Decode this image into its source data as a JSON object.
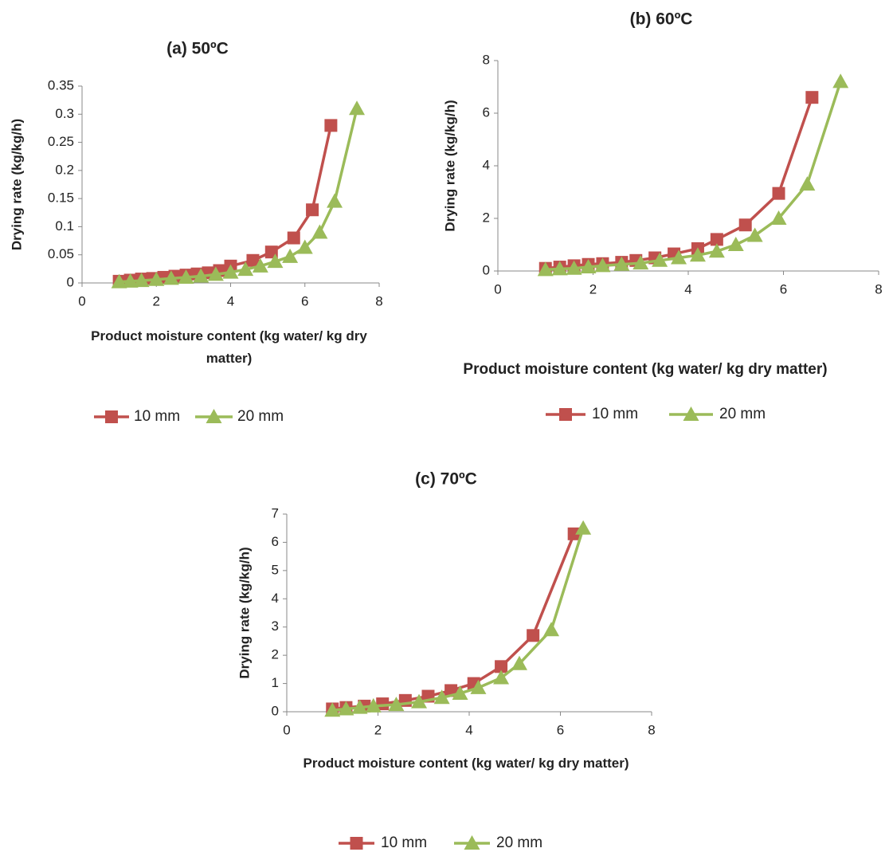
{
  "chart_data": [
    {
      "type": "line",
      "title": "(a) 50ºC",
      "xlabel": "Product moisture content (kg water/ kg dry matter)",
      "ylabel": "Drying rate (kg/kg/h)",
      "xlim": [
        0,
        8
      ],
      "xticks": [
        0,
        2,
        4,
        6,
        8
      ],
      "ylim": [
        0,
        0.35
      ],
      "yticks": [
        0,
        0.05,
        0.1,
        0.15,
        0.2,
        0.25,
        0.3,
        0.35
      ],
      "grid": false,
      "series": [
        {
          "name": "10 mm",
          "color": "#c0504d",
          "marker": "square",
          "x": [
            1.0,
            1.3,
            1.6,
            1.9,
            2.2,
            2.5,
            2.8,
            3.1,
            3.4,
            3.7,
            4.0,
            4.6,
            5.1,
            5.7,
            6.2,
            6.7
          ],
          "values": [
            0.003,
            0.005,
            0.007,
            0.008,
            0.01,
            0.012,
            0.014,
            0.016,
            0.018,
            0.022,
            0.03,
            0.04,
            0.055,
            0.08,
            0.13,
            0.28
          ]
        },
        {
          "name": "20 mm",
          "color": "#9bbb59",
          "marker": "triangle",
          "x": [
            1.0,
            1.3,
            1.6,
            2.0,
            2.4,
            2.8,
            3.2,
            3.6,
            4.0,
            4.4,
            4.8,
            5.2,
            5.6,
            6.0,
            6.4,
            6.8,
            7.4
          ],
          "values": [
            0.002,
            0.003,
            0.004,
            0.006,
            0.008,
            0.01,
            0.012,
            0.015,
            0.019,
            0.024,
            0.03,
            0.038,
            0.047,
            0.063,
            0.09,
            0.145,
            0.31
          ]
        }
      ]
    },
    {
      "type": "line",
      "title": "(b) 60ºC",
      "xlabel": "Product moisture content (kg water/ kg dry matter)",
      "ylabel": "Drying rate (kg/kg/h)",
      "xlim": [
        0,
        8
      ],
      "xticks": [
        0,
        2,
        4,
        6,
        8
      ],
      "ylim": [
        0,
        8
      ],
      "yticks": [
        0,
        2,
        4,
        6,
        8
      ],
      "grid": false,
      "series": [
        {
          "name": "10 mm",
          "color": "#c0504d",
          "marker": "square",
          "x": [
            1.0,
            1.3,
            1.6,
            1.9,
            2.2,
            2.6,
            2.9,
            3.3,
            3.7,
            4.2,
            4.6,
            5.2,
            5.9,
            6.6
          ],
          "values": [
            0.1,
            0.15,
            0.2,
            0.25,
            0.28,
            0.33,
            0.4,
            0.5,
            0.65,
            0.85,
            1.2,
            1.75,
            2.95,
            6.6
          ]
        },
        {
          "name": "20 mm",
          "color": "#9bbb59",
          "marker": "triangle",
          "x": [
            1.0,
            1.3,
            1.6,
            1.9,
            2.2,
            2.6,
            3.0,
            3.4,
            3.8,
            4.2,
            4.6,
            5.0,
            5.4,
            5.9,
            6.5,
            7.2
          ],
          "values": [
            0.05,
            0.08,
            0.1,
            0.15,
            0.2,
            0.25,
            0.3,
            0.4,
            0.5,
            0.6,
            0.75,
            1.0,
            1.35,
            2.0,
            3.3,
            7.2
          ]
        }
      ]
    },
    {
      "type": "line",
      "title": "(c) 70ºC",
      "xlabel": "Product moisture content (kg water/ kg dry matter)",
      "ylabel": "Drying rate (kg/kg/h)",
      "xlim": [
        0,
        8
      ],
      "xticks": [
        0,
        2,
        4,
        6,
        8
      ],
      "ylim": [
        0,
        7
      ],
      "yticks": [
        0,
        1,
        2,
        3,
        4,
        5,
        6,
        7
      ],
      "grid": false,
      "series": [
        {
          "name": "10 mm",
          "color": "#c0504d",
          "marker": "square",
          "x": [
            1.0,
            1.3,
            1.7,
            2.1,
            2.6,
            3.1,
            3.6,
            4.1,
            4.7,
            5.4,
            6.3
          ],
          "values": [
            0.1,
            0.15,
            0.2,
            0.28,
            0.4,
            0.55,
            0.75,
            1.0,
            1.6,
            2.7,
            6.3
          ]
        },
        {
          "name": "20 mm",
          "color": "#9bbb59",
          "marker": "triangle",
          "x": [
            1.0,
            1.3,
            1.6,
            1.9,
            2.4,
            2.9,
            3.4,
            3.8,
            4.2,
            4.7,
            5.1,
            5.8,
            6.5
          ],
          "values": [
            0.05,
            0.1,
            0.15,
            0.2,
            0.25,
            0.35,
            0.5,
            0.65,
            0.85,
            1.2,
            1.7,
            2.9,
            6.5
          ]
        }
      ]
    }
  ]
}
